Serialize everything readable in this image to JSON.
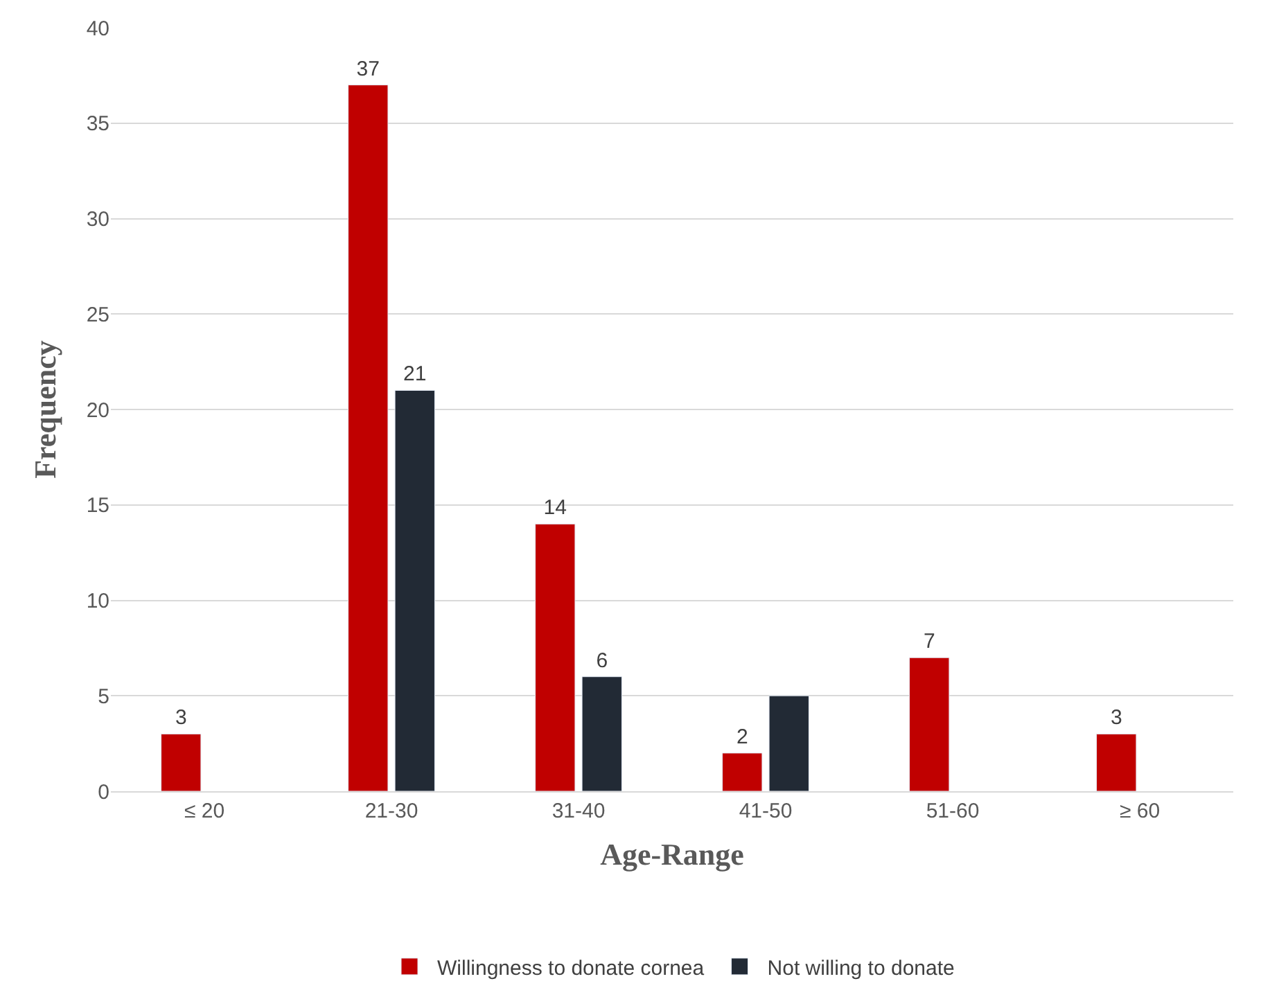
{
  "chart_data": {
    "type": "bar",
    "xlabel": "Age-Range",
    "ylabel": "Frequency",
    "categories": [
      "≤ 20",
      "21-30",
      "31-40",
      "41-50",
      "51-60",
      "≥ 60"
    ],
    "series": [
      {
        "name": "Willingness to donate cornea",
        "color": "#c00000",
        "values": [
          3,
          37,
          14,
          2,
          7,
          3
        ],
        "value_labels": [
          "3",
          "37",
          "14",
          "2",
          "7",
          "3"
        ]
      },
      {
        "name": "Not willing to donate",
        "color": "#222a35",
        "values": [
          null,
          21,
          6,
          5,
          null,
          null
        ],
        "value_labels": [
          null,
          "21",
          "6",
          null,
          null,
          null
        ]
      }
    ],
    "ylim": [
      0,
      40
    ],
    "yticks": [
      0,
      5,
      10,
      15,
      20,
      25,
      30,
      35,
      40
    ],
    "grid": "y",
    "legend": "bottom"
  }
}
